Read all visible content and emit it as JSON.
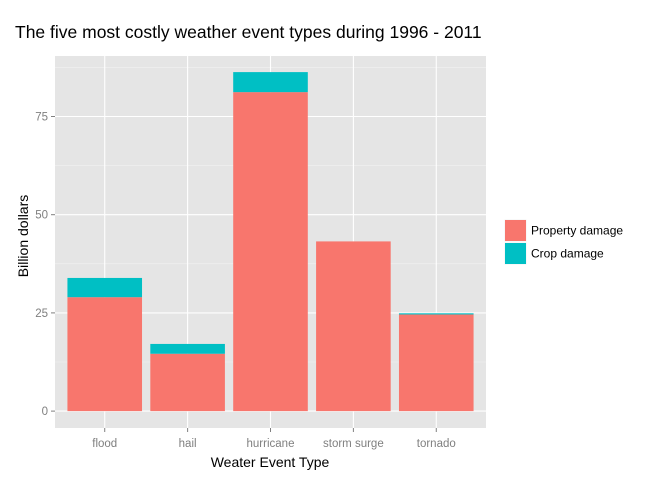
{
  "chart_data": {
    "type": "bar",
    "stacked": true,
    "title": "The five most costly weather event types during 1996 - 2011",
    "xlabel": "Weater Event Type",
    "ylabel": "Billion dollars",
    "categories": [
      "flood",
      "hail",
      "hurricane",
      "storm surge",
      "tornado"
    ],
    "series": [
      {
        "name": "Property damage",
        "color": "#f8766d",
        "values": [
          29.0,
          14.6,
          81.2,
          43.2,
          24.6
        ]
      },
      {
        "name": "Crop damage",
        "color": "#00bfc4",
        "values": [
          4.9,
          2.5,
          5.1,
          0.0,
          0.3
        ]
      }
    ],
    "ylim": [
      -4.3,
      90.4
    ],
    "yticks": [
      0,
      25,
      50,
      75
    ],
    "ytick_labels": [
      "0",
      "25",
      "50",
      "75"
    ],
    "grid": true,
    "panel_background": "#e5e5e5",
    "legend_position": "right"
  }
}
